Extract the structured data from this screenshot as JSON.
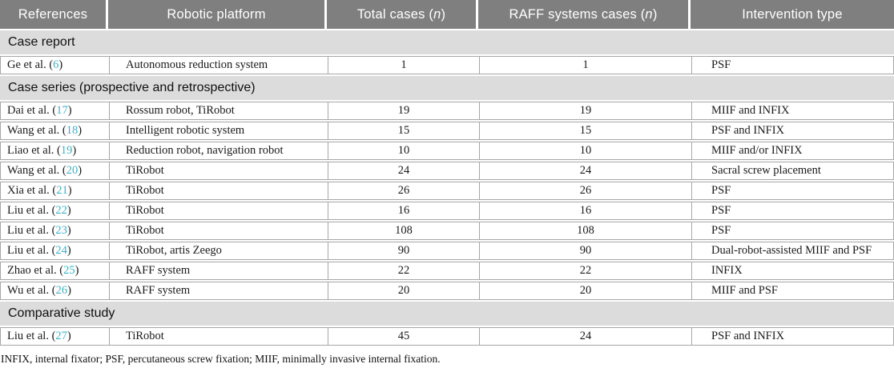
{
  "table": {
    "headers": [
      "References",
      "Robotic platform",
      "Total cases (n)",
      "RAFF systems cases (n)",
      "Intervention type"
    ],
    "sections": [
      {
        "title": "Case report",
        "rows": [
          {
            "ref_label": "Ge et al.",
            "ref_num": "6",
            "platform": "Autonomous reduction system",
            "total_cases": "1",
            "raff_cases": "1",
            "intervention": "PSF"
          }
        ]
      },
      {
        "title": "Case series (prospective and retrospective)",
        "rows": [
          {
            "ref_label": "Dai et al.",
            "ref_num": "17",
            "platform": "Rossum robot, TiRobot",
            "total_cases": "19",
            "raff_cases": "19",
            "intervention": "MIIF and INFIX"
          },
          {
            "ref_label": "Wang et al.",
            "ref_num": "18",
            "platform": "Intelligent robotic system",
            "total_cases": "15",
            "raff_cases": "15",
            "intervention": "PSF and INFIX"
          },
          {
            "ref_label": "Liao et al.",
            "ref_num": "19",
            "platform": "Reduction robot, navigation robot",
            "total_cases": "10",
            "raff_cases": "10",
            "intervention": "MIIF and/or INFIX"
          },
          {
            "ref_label": "Wang et al.",
            "ref_num": "20",
            "platform": "TiRobot",
            "total_cases": "24",
            "raff_cases": "24",
            "intervention": "Sacral screw placement"
          },
          {
            "ref_label": "Xia et al.",
            "ref_num": "21",
            "platform": "TiRobot",
            "total_cases": "26",
            "raff_cases": "26",
            "intervention": "PSF"
          },
          {
            "ref_label": "Liu et al.",
            "ref_num": "22",
            "platform": "TiRobot",
            "total_cases": "16",
            "raff_cases": "16",
            "intervention": "PSF"
          },
          {
            "ref_label": "Liu et al.",
            "ref_num": "23",
            "platform": "TiRobot",
            "total_cases": "108",
            "raff_cases": "108",
            "intervention": "PSF"
          },
          {
            "ref_label": "Liu et al.",
            "ref_num": "24",
            "platform": "TiRobot, artis Zeego",
            "total_cases": "90",
            "raff_cases": "90",
            "intervention": "Dual-robot-assisted MIIF and PSF"
          },
          {
            "ref_label": "Zhao et al.",
            "ref_num": "25",
            "platform": "RAFF system",
            "total_cases": "22",
            "raff_cases": "22",
            "intervention": "INFIX"
          },
          {
            "ref_label": "Wu et al.",
            "ref_num": "26",
            "platform": "RAFF system",
            "total_cases": "20",
            "raff_cases": "20",
            "intervention": "MIIF and PSF"
          }
        ]
      },
      {
        "title": "Comparative study",
        "rows": [
          {
            "ref_label": "Liu et al.",
            "ref_num": "27",
            "platform": "TiRobot",
            "total_cases": "45",
            "raff_cases": "24",
            "intervention": "PSF and INFIX"
          }
        ]
      }
    ],
    "footnote": "INFIX, internal fixator; PSF, percutaneous screw fixation; MIIF, minimally invasive internal fixation."
  },
  "colors": {
    "header_bg": "#7f7f7f",
    "header_text": "#ffffff",
    "section_bg": "#dcdcdc",
    "row_border": "#a6a6a6",
    "reference_link": "#3fb0c4"
  }
}
